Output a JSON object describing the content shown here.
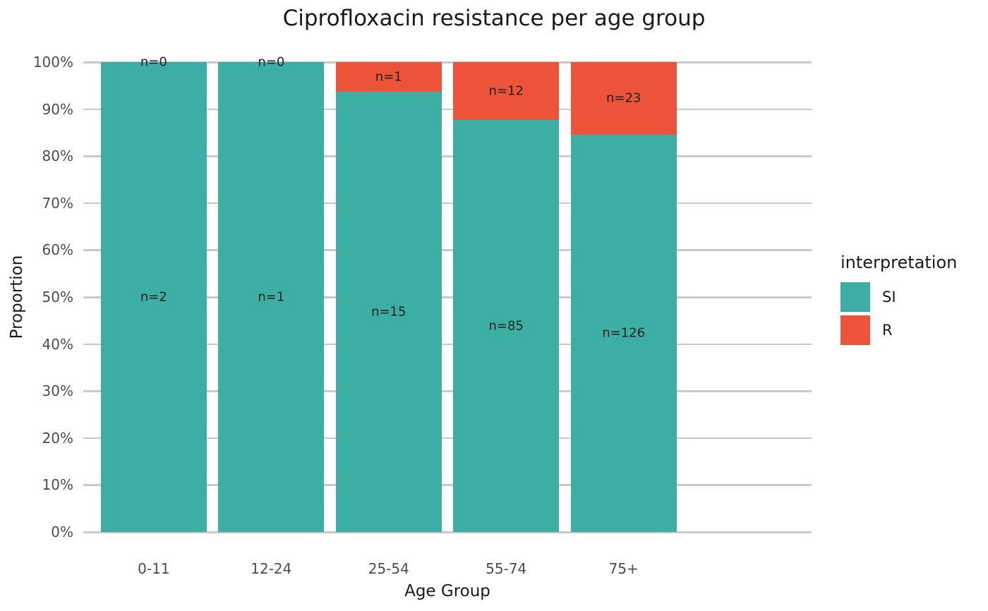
{
  "title": "Ciprofloxacin resistance per age group",
  "colors": {
    "si": "#3caea3",
    "r": "#eb5438",
    "grid": "#c9c9c9",
    "tick_label": "#4d4d4d",
    "text": "#1a1a1a"
  },
  "legend": {
    "title": "interpretation",
    "entries": [
      {
        "label": "SI",
        "color_key": "si"
      },
      {
        "label": "R",
        "color_key": "r"
      }
    ]
  },
  "chart_data": {
    "type": "bar",
    "stacked": true,
    "normalized": "percent",
    "title": "Ciprofloxacin resistance per age group",
    "xlabel": "Age Group",
    "ylabel": "Proportion",
    "categories": [
      "0-11",
      "12-24",
      "25-54",
      "55-74",
      "75+"
    ],
    "series": [
      {
        "name": "SI",
        "counts": [
          2,
          1,
          15,
          85,
          126
        ]
      },
      {
        "name": "R",
        "counts": [
          0,
          0,
          1,
          12,
          23
        ]
      }
    ],
    "r_percent_of_total": [
      0,
      0,
      6.25,
      12.37,
      15.44
    ],
    "bar_labels": {
      "si": [
        "n=2",
        "n=1",
        "n=15",
        "n=85",
        "n=126"
      ],
      "r": [
        "n=0",
        "n=0",
        "n=1",
        "n=12",
        "n=23"
      ]
    },
    "ylim": [
      0,
      100
    ],
    "yticks": [
      "0%",
      "10%",
      "20%",
      "30%",
      "40%",
      "50%",
      "60%",
      "70%",
      "80%",
      "90%",
      "100%"
    ],
    "grid": true,
    "legend_position": "right"
  }
}
